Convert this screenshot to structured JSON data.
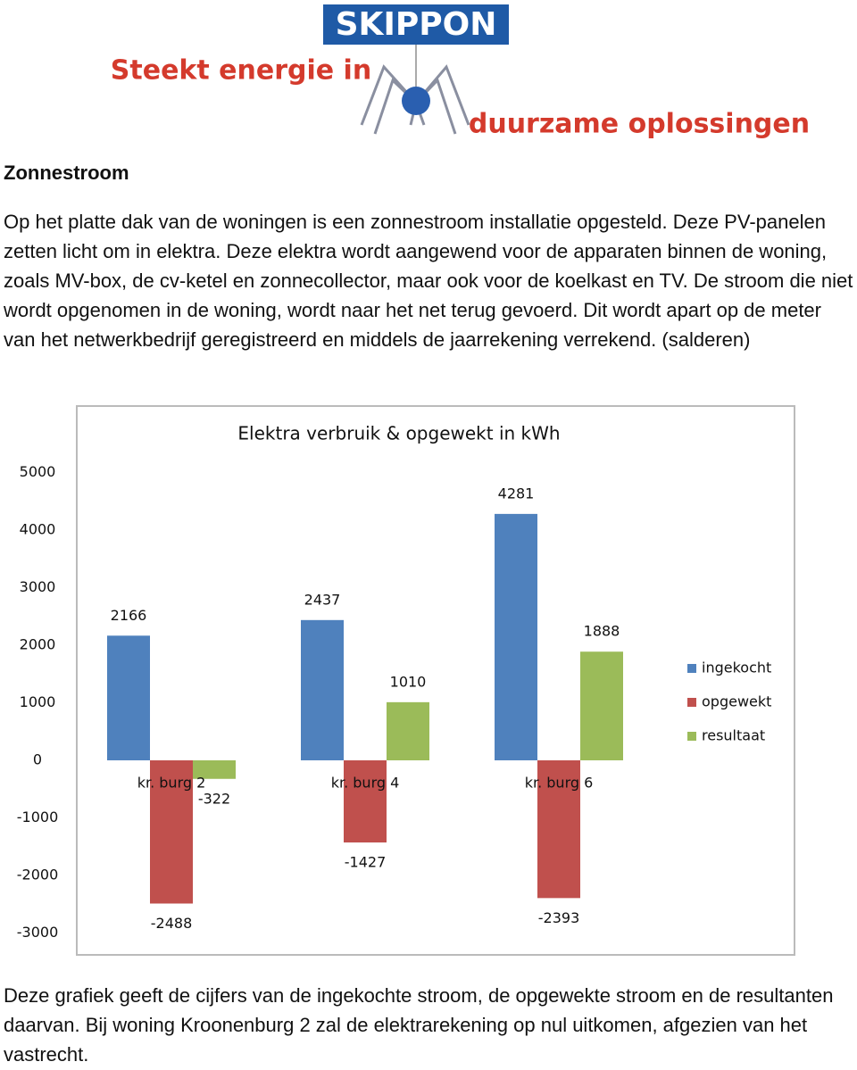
{
  "logo": {
    "brand": "SKIPPON",
    "slogan_top": "Steekt energie in",
    "slogan_bottom": "duurzame oplossingen"
  },
  "heading": "Zonnestroom",
  "intro": "Op het platte dak van de woningen is een zonnestroom installatie opgesteld. Deze PV-panelen zetten licht om in elektra. Deze elektra wordt aangewend voor de apparaten binnen de woning, zoals MV-box, de cv-ketel en zonnecollector, maar ook voor de koelkast en TV. De stroom die niet wordt opgenomen in de woning, wordt naar het net terug gevoerd. Dit wordt apart op de meter van het netwerkbedrijf geregistreerd en middels de jaarrekening verrekend. (salderen)",
  "chart_data": {
    "type": "bar",
    "title": "Elektra verbruik & opgewekt in kWh",
    "categories": [
      "kr. burg 2",
      "kr. burg 4",
      "kr. burg 6"
    ],
    "series": [
      {
        "name": "ingekocht",
        "color": "#4f81bd",
        "values": [
          2166,
          2437,
          4281
        ]
      },
      {
        "name": "opgewekt",
        "color": "#c0504d",
        "values": [
          -2488,
          -1427,
          -2393
        ]
      },
      {
        "name": "resultaat",
        "color": "#9bbb59",
        "values": [
          -322,
          1010,
          1888
        ]
      }
    ],
    "ylim": [
      -3000,
      5000
    ],
    "yticks": [
      -3000,
      -2000,
      -1000,
      0,
      1000,
      2000,
      3000,
      4000,
      5000
    ],
    "grid": false,
    "legend": "right"
  },
  "outro": "Deze grafiek geeft de cijfers van de ingekochte stroom, de opgewekte stroom en de resultanten daarvan. Bij woning Kroonenburg 2 zal de elektrarekening op nul uitkomen, afgezien van het vastrecht."
}
